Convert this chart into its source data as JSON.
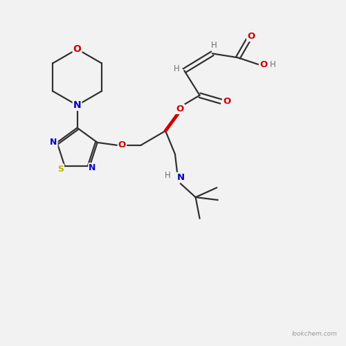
{
  "background_color": "#f2f2f2",
  "watermark": "lookchem.com",
  "figsize": [
    5.0,
    5.0
  ],
  "dpi": 100,
  "colors": {
    "C": "#303030",
    "N": "#0000cc",
    "O": "#cc0000",
    "S": "#b8b800",
    "H": "#707070",
    "O_stereo": "#cc0000"
  }
}
